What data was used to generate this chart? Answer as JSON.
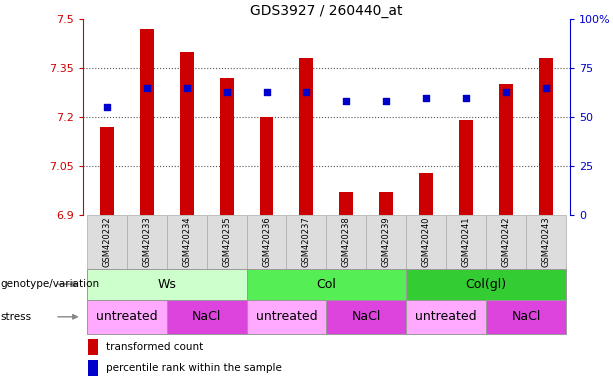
{
  "title": "GDS3927 / 260440_at",
  "samples": [
    "GSM420232",
    "GSM420233",
    "GSM420234",
    "GSM420235",
    "GSM420236",
    "GSM420237",
    "GSM420238",
    "GSM420239",
    "GSM420240",
    "GSM420241",
    "GSM420242",
    "GSM420243"
  ],
  "bar_values": [
    7.17,
    7.47,
    7.4,
    7.32,
    7.2,
    7.38,
    6.97,
    6.97,
    7.03,
    7.19,
    7.3,
    7.38
  ],
  "bar_base": 6.9,
  "dot_values": [
    55,
    65,
    65,
    63,
    63,
    63,
    58,
    58,
    60,
    60,
    63,
    65
  ],
  "ylim": [
    6.9,
    7.5
  ],
  "y2lim": [
    0,
    100
  ],
  "yticks": [
    6.9,
    7.05,
    7.2,
    7.35,
    7.5
  ],
  "y2ticks": [
    0,
    25,
    50,
    75,
    100
  ],
  "y2ticklabels": [
    "0",
    "25",
    "50",
    "75",
    "100%"
  ],
  "bar_color": "#cc0000",
  "dot_color": "#0000cc",
  "grid_color": "#555555",
  "bg_color": "#ffffff",
  "genotype_groups": [
    {
      "label": "Ws",
      "start": 0,
      "end": 4,
      "color": "#ccffcc"
    },
    {
      "label": "Col",
      "start": 4,
      "end": 8,
      "color": "#55ee55"
    },
    {
      "label": "Col(gl)",
      "start": 8,
      "end": 12,
      "color": "#33cc33"
    }
  ],
  "stress_groups": [
    {
      "label": "untreated",
      "start": 0,
      "end": 2,
      "color": "#ffaaff"
    },
    {
      "label": "NaCl",
      "start": 2,
      "end": 4,
      "color": "#dd44dd"
    },
    {
      "label": "untreated",
      "start": 4,
      "end": 6,
      "color": "#ffaaff"
    },
    {
      "label": "NaCl",
      "start": 6,
      "end": 8,
      "color": "#dd44dd"
    },
    {
      "label": "untreated",
      "start": 8,
      "end": 10,
      "color": "#ffaaff"
    },
    {
      "label": "NaCl",
      "start": 10,
      "end": 12,
      "color": "#dd44dd"
    }
  ],
  "legend_red": "transformed count",
  "legend_blue": "percentile rank within the sample",
  "label_genotype": "genotype/variation",
  "label_stress": "stress",
  "tick_color_left": "#cc0000",
  "tick_color_right": "#0000cc",
  "sample_box_color": "#dddddd",
  "sample_box_edge": "#aaaaaa",
  "arrow_color": "#888888"
}
